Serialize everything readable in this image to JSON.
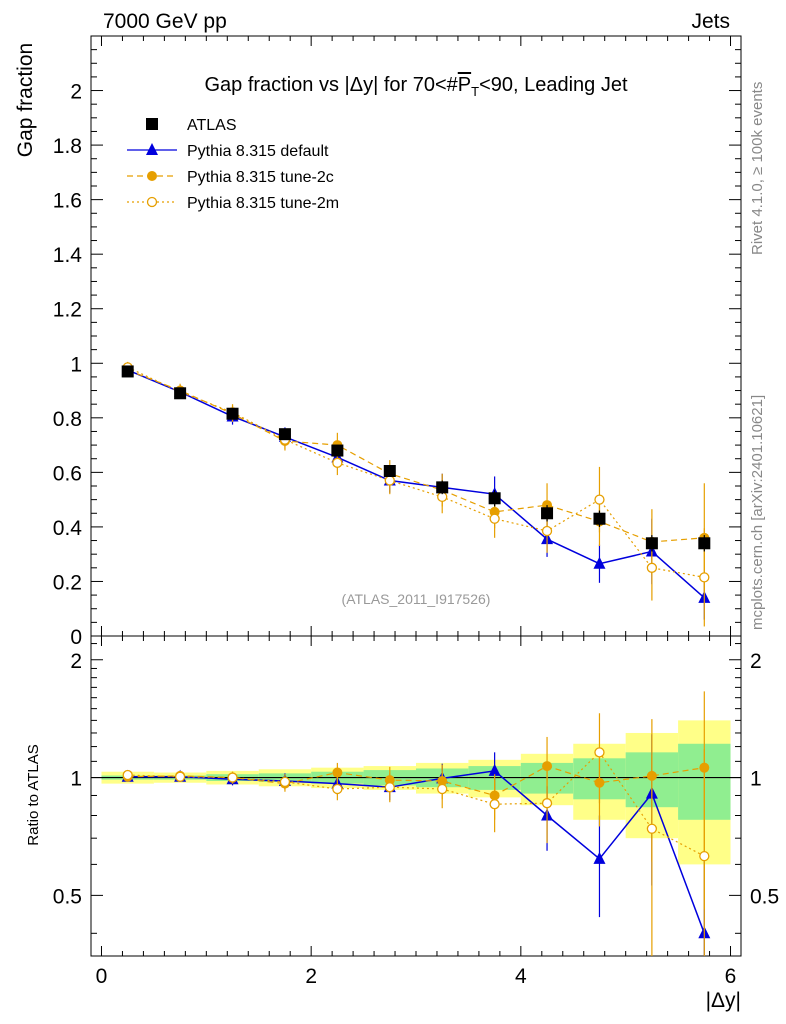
{
  "header": {
    "energy_label": "7000 GeV pp",
    "process_label": "Jets"
  },
  "side_labels": {
    "rivet": "Rivet 4.1.0, ≥ 100k events",
    "mcplots": "mcplots.cern.ch [arXiv:2401.10621]"
  },
  "chart_data": {
    "type": "scatter",
    "title": "Gap fraction vs |Δy| for 70<#P̅T<90, Leading Jet",
    "title_parts": {
      "prefix": "Gap fraction vs |Δy| for 70<#",
      "p": "P",
      "t": "T",
      "suffix": "<90, Leading Jet"
    },
    "analysis_tag": "(ATLAS_2011_I917526)",
    "xlabel": "|Δy|",
    "ylabel_main": "Gap fraction",
    "ylabel_ratio": "Ratio to ATLAS",
    "xlim": [
      -0.1,
      6.1
    ],
    "ylim_main": [
      0,
      2.2
    ],
    "ylim_ratio": [
      0.35,
      2.3
    ],
    "x_ticks": [
      0,
      2,
      4,
      6
    ],
    "x_tick_labels": [
      "0",
      "2",
      "4",
      "6"
    ],
    "y_ticks_main": [
      0,
      0.2,
      0.4,
      0.6,
      0.8,
      1,
      1.2,
      1.4,
      1.6,
      1.8,
      2
    ],
    "y_tick_labels_main": [
      "0",
      "0.2",
      "0.4",
      "0.6",
      "0.8",
      "1",
      "1.2",
      "1.4",
      "1.6",
      "1.8",
      "2"
    ],
    "y_ticks_ratio": [
      0.5,
      1,
      2
    ],
    "y_tick_labels_ratio": [
      "0.5",
      "1",
      "2"
    ],
    "bin_edges": [
      0,
      0.5,
      1,
      1.5,
      2,
      2.5,
      3,
      3.5,
      4,
      4.5,
      5,
      5.5,
      6
    ],
    "x": [
      0.25,
      0.75,
      1.25,
      1.75,
      2.25,
      2.75,
      3.25,
      3.75,
      4.25,
      4.75,
      5.25,
      5.75
    ],
    "ratio_band_yellow": [
      0.035,
      0.03,
      0.04,
      0.05,
      0.06,
      0.07,
      0.09,
      0.11,
      0.15,
      0.22,
      0.3,
      0.4
    ],
    "ratio_band_green": [
      0.012,
      0.012,
      0.02,
      0.025,
      0.035,
      0.045,
      0.055,
      0.07,
      0.09,
      0.12,
      0.16,
      0.22
    ],
    "series": [
      {
        "name": "ATLAS",
        "style": "data",
        "color": "#000000",
        "values": [
          0.97,
          0.89,
          0.815,
          0.74,
          0.68,
          0.605,
          0.545,
          0.505,
          0.45,
          0.43,
          0.34,
          0.34
        ],
        "errors": [
          0.02,
          0.02,
          0.02,
          0.02,
          0.02,
          0.02,
          0.025,
          0.03,
          0.03,
          0.03,
          0.03,
          0.03
        ],
        "ratio": [
          1,
          1,
          1,
          1,
          1,
          1,
          1,
          1,
          1,
          1,
          1,
          1
        ],
        "ratio_errors": [
          0,
          0,
          0,
          0,
          0,
          0,
          0,
          0,
          0,
          0,
          0,
          0
        ]
      },
      {
        "name": "Pythia 8.315 default",
        "style": "solid-triangle",
        "color": "#0000dd",
        "values": [
          0.975,
          0.895,
          0.805,
          0.73,
          0.655,
          0.57,
          0.545,
          0.52,
          0.355,
          0.265,
          0.31,
          0.14
        ],
        "errors": [
          0.02,
          0.025,
          0.03,
          0.035,
          0.04,
          0.045,
          0.05,
          0.065,
          0.065,
          0.07,
          0.12,
          0.08
        ],
        "ratio": [
          1.005,
          1.005,
          0.99,
          0.98,
          0.965,
          0.945,
          0.995,
          1.04,
          0.8,
          0.62,
          0.91,
          0.4
        ],
        "ratio_errors": [
          0.02,
          0.03,
          0.035,
          0.045,
          0.06,
          0.07,
          0.09,
          0.12,
          0.15,
          0.18,
          0.38,
          0.25
        ]
      },
      {
        "name": "Pythia 8.315 tune-2c",
        "style": "dashed-dot",
        "color": "#e69f00",
        "values": [
          0.975,
          0.9,
          0.815,
          0.715,
          0.7,
          0.595,
          0.535,
          0.455,
          0.48,
          0.42,
          0.345,
          0.36
        ],
        "errors": [
          0.02,
          0.025,
          0.03,
          0.035,
          0.045,
          0.05,
          0.06,
          0.06,
          0.08,
          0.09,
          0.12,
          0.2
        ],
        "ratio": [
          1.005,
          1.01,
          1.0,
          0.965,
          1.03,
          0.985,
          0.98,
          0.9,
          1.07,
          0.97,
          1.01,
          1.06
        ],
        "ratio_errors": [
          0.02,
          0.03,
          0.035,
          0.045,
          0.06,
          0.08,
          0.1,
          0.12,
          0.2,
          0.22,
          0.4,
          0.6
        ]
      },
      {
        "name": "Pythia 8.315 tune-2m",
        "style": "dotted-open-circle",
        "color": "#e69f00",
        "values": [
          0.985,
          0.895,
          0.82,
          0.72,
          0.635,
          0.57,
          0.51,
          0.43,
          0.385,
          0.5,
          0.25,
          0.215
        ],
        "errors": [
          0.02,
          0.025,
          0.03,
          0.035,
          0.045,
          0.05,
          0.06,
          0.07,
          0.08,
          0.12,
          0.12,
          0.18
        ],
        "ratio": [
          1.015,
          1.005,
          1.0,
          0.975,
          0.935,
          0.945,
          0.935,
          0.855,
          0.86,
          1.16,
          0.74,
          0.63
        ],
        "ratio_errors": [
          0.02,
          0.03,
          0.035,
          0.045,
          0.06,
          0.08,
          0.1,
          0.13,
          0.18,
          0.3,
          0.4,
          0.55
        ]
      }
    ]
  }
}
